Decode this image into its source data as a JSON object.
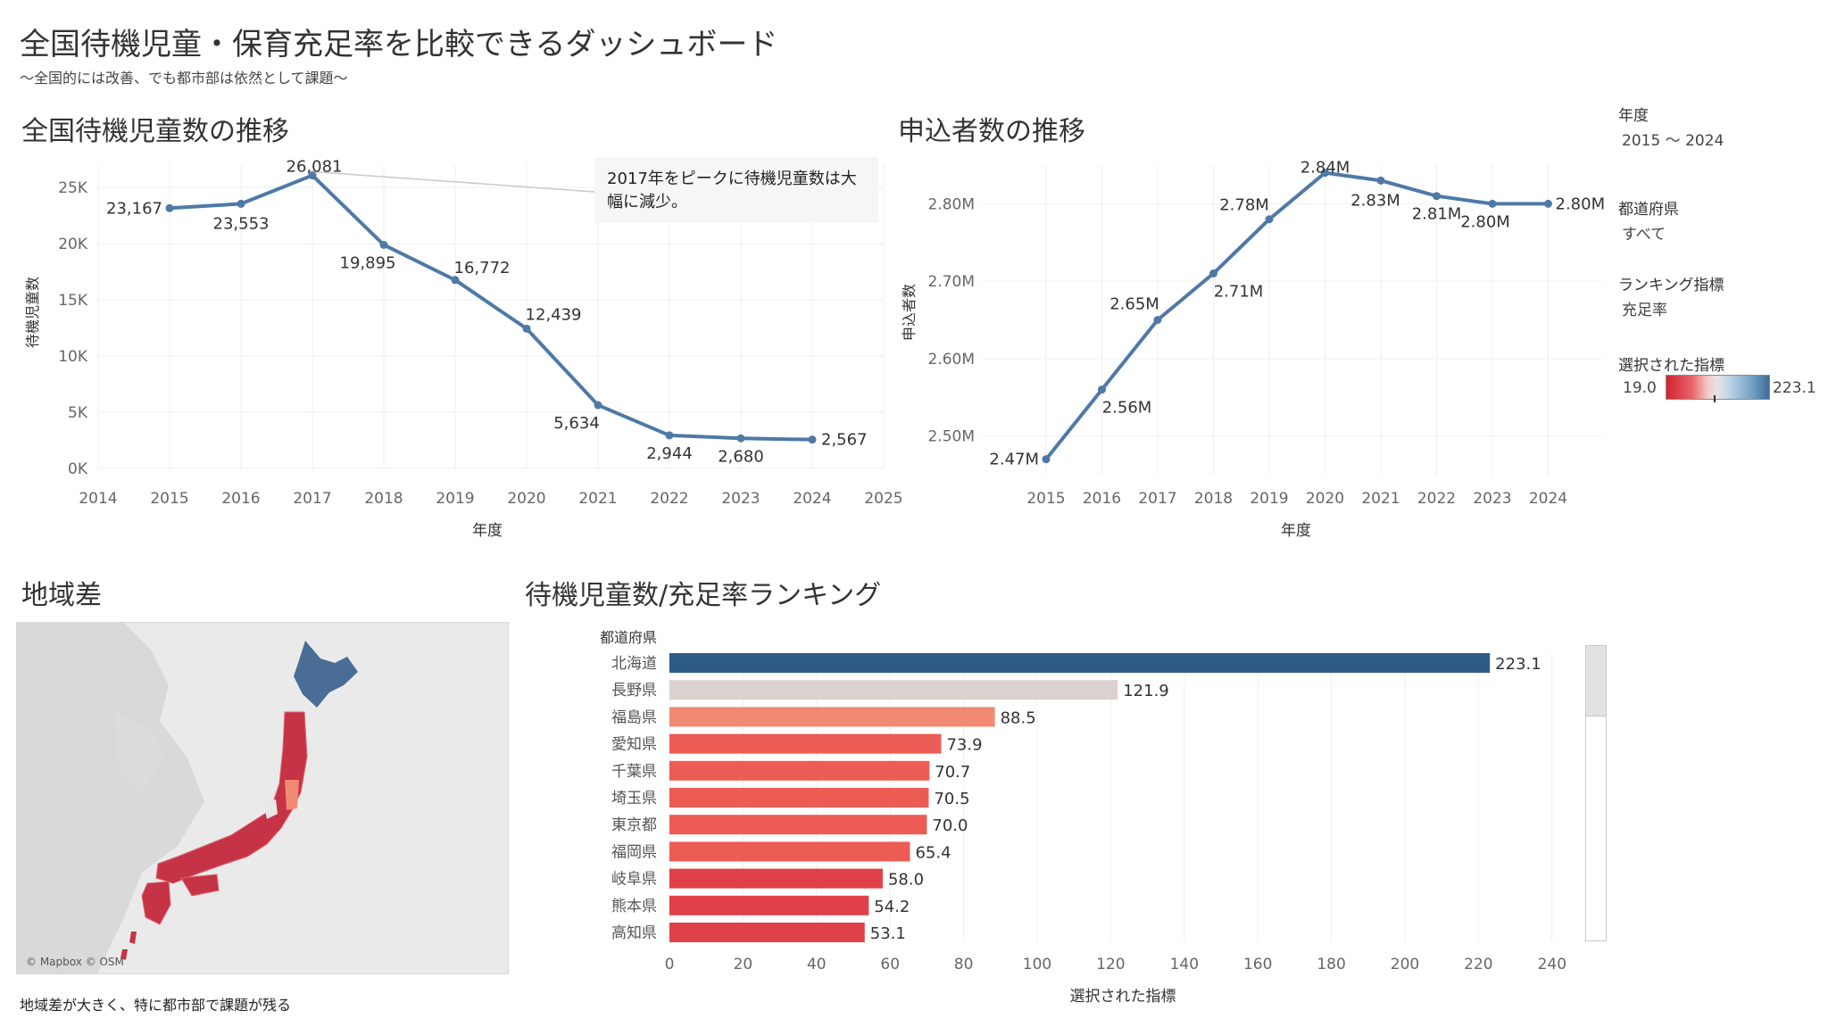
{
  "header": {
    "title": "全国待機児童・保育充足率を比較できるダッシュボード",
    "subtitle": "～全国的には改善、でも都市部は依然として課題～"
  },
  "sections": {
    "waiting_title": "全国待機児童数の推移",
    "applicants_title": "申込者数の推移",
    "region_title": "地域差",
    "ranking_title": "待機児童数/充足率ランキング"
  },
  "filters": {
    "year_label": "年度",
    "year_value": "2015 ～ 2024",
    "pref_label": "都道府県",
    "pref_value": "すべて",
    "metric_label": "ランキング指標",
    "metric_value": "充足率",
    "selected_label": "選択された指標",
    "selected_min": "19.0",
    "selected_max": "223.1"
  },
  "annotation": {
    "text": "2017年をピークに待機児童数は大幅に減少。"
  },
  "map": {
    "credit": "© Mapbox © OSM",
    "note": "地域差が大きく、特に都市部で課題が残る"
  },
  "colors": {
    "line": "#4e79a7",
    "bar_top": "#2f5b87",
    "bar_neutral": "#dbd2d0",
    "bar_high": "#f08a73",
    "bar_mid": "#ec5c55",
    "bar_low": "#e04047",
    "japan_north": "#4a6d96",
    "japan_south": "#c63346"
  },
  "chart_data": [
    {
      "type": "line",
      "title": "全国待機児童数の推移",
      "xlabel": "年度",
      "ylabel": "待機児童数",
      "x": [
        2015,
        2016,
        2017,
        2018,
        2019,
        2020,
        2021,
        2022,
        2023,
        2024
      ],
      "y": [
        23167,
        23553,
        26081,
        19895,
        16772,
        12439,
        5634,
        2944,
        2680,
        2567
      ],
      "data_labels": [
        "23,167",
        "23,553",
        "26,081",
        "19,895",
        "16,772",
        "12,439",
        "5,634",
        "2,944",
        "2,680",
        "2,567"
      ],
      "xlim": [
        2014,
        2025
      ],
      "xticks": [
        "2014",
        "2015",
        "2016",
        "2017",
        "2018",
        "2019",
        "2020",
        "2021",
        "2022",
        "2023",
        "2024",
        "2025"
      ],
      "ylim": [
        0,
        27000
      ],
      "yticks": [
        0,
        5000,
        10000,
        15000,
        20000,
        25000
      ],
      "ytick_labels": [
        "0K",
        "5K",
        "10K",
        "15K",
        "20K",
        "25K"
      ],
      "grid": true
    },
    {
      "type": "line",
      "title": "申込者数の推移",
      "xlabel": "年度",
      "ylabel": "申込者数",
      "x": [
        2015,
        2016,
        2017,
        2018,
        2019,
        2020,
        2021,
        2022,
        2023,
        2024
      ],
      "y": [
        2.47,
        2.56,
        2.65,
        2.71,
        2.78,
        2.84,
        2.83,
        2.81,
        2.8,
        2.8
      ],
      "data_labels": [
        "2.47M",
        "2.56M",
        "2.65M",
        "2.71M",
        "2.78M",
        "2.84M",
        "2.83M",
        "2.81M",
        "2.80M",
        "2.80M"
      ],
      "xticks": [
        "2015",
        "2016",
        "2017",
        "2018",
        "2019",
        "2020",
        "2021",
        "2022",
        "2023",
        "2024"
      ],
      "ylim": [
        2.45,
        2.85
      ],
      "yticks": [
        2.5,
        2.6,
        2.7,
        2.8
      ],
      "ytick_labels": [
        "2.50M",
        "2.60M",
        "2.70M",
        "2.80M"
      ],
      "unit": "M",
      "grid": true
    },
    {
      "type": "bar",
      "orientation": "horizontal",
      "title": "待機児童数/充足率ランキング",
      "category_header": "都道府県",
      "xlabel": "選択された指標",
      "categories": [
        "北海道",
        "長野県",
        "福島県",
        "愛知県",
        "千葉県",
        "埼玉県",
        "東京都",
        "福岡県",
        "岐阜県",
        "熊本県",
        "高知県"
      ],
      "values": [
        223.1,
        121.9,
        88.5,
        73.9,
        70.7,
        70.5,
        70.0,
        65.4,
        58.0,
        54.2,
        53.1
      ],
      "value_labels": [
        "223.1",
        "121.9",
        "88.5",
        "73.9",
        "70.7",
        "70.5",
        "70.0",
        "65.4",
        "58.0",
        "54.2",
        "53.1"
      ],
      "xlim": [
        0,
        250
      ],
      "xticks": [
        0,
        20,
        40,
        60,
        80,
        100,
        120,
        140,
        160,
        180,
        200,
        220,
        240
      ],
      "color_scale": {
        "min": 19.0,
        "max": 223.1
      },
      "grid": true
    }
  ]
}
